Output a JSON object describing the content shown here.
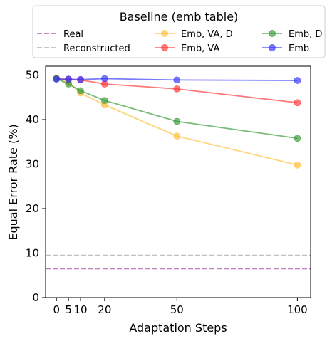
{
  "chart_data": {
    "type": "line",
    "title": "",
    "xlabel": "Adaptation Steps",
    "ylabel": "Equal Error Rate (%)",
    "xticks": [
      0,
      5,
      10,
      20,
      50,
      100
    ],
    "yticks": [
      0,
      10,
      20,
      30,
      40,
      50
    ],
    "ylim": [
      0,
      52
    ],
    "grid": false,
    "legend": {
      "title": "Baseline (emb table)",
      "placement": "top, above plot",
      "columns": 3,
      "entries": [
        "Real",
        "Reconstructed",
        "Emb, VA, D",
        "Emb, VA",
        "Emb, D",
        "Emb"
      ]
    },
    "reference_lines": [
      {
        "name": "Real",
        "value": 6.5,
        "style": "dashed",
        "color": "#bf7fbf"
      },
      {
        "name": "Reconstructed",
        "value": 9.5,
        "style": "dashed",
        "color": "#bfbfbf"
      }
    ],
    "x": [
      0,
      5,
      10,
      20,
      50,
      100
    ],
    "series": [
      {
        "name": "Emb, VA, D",
        "color": "#ffbf33",
        "values": [
          49.3,
          48.3,
          46.0,
          43.3,
          36.3,
          29.8
        ]
      },
      {
        "name": "Emb, VA",
        "color": "#ff3333",
        "values": [
          49.2,
          49.0,
          48.9,
          48.0,
          46.9,
          43.8
        ]
      },
      {
        "name": "Emb, D",
        "color": "#339933",
        "values": [
          49.2,
          48.0,
          46.5,
          44.3,
          39.6,
          35.8
        ]
      },
      {
        "name": "Emb",
        "color": "#3333ff",
        "values": [
          49.1,
          49.1,
          49.0,
          49.2,
          48.9,
          48.8
        ]
      }
    ]
  }
}
